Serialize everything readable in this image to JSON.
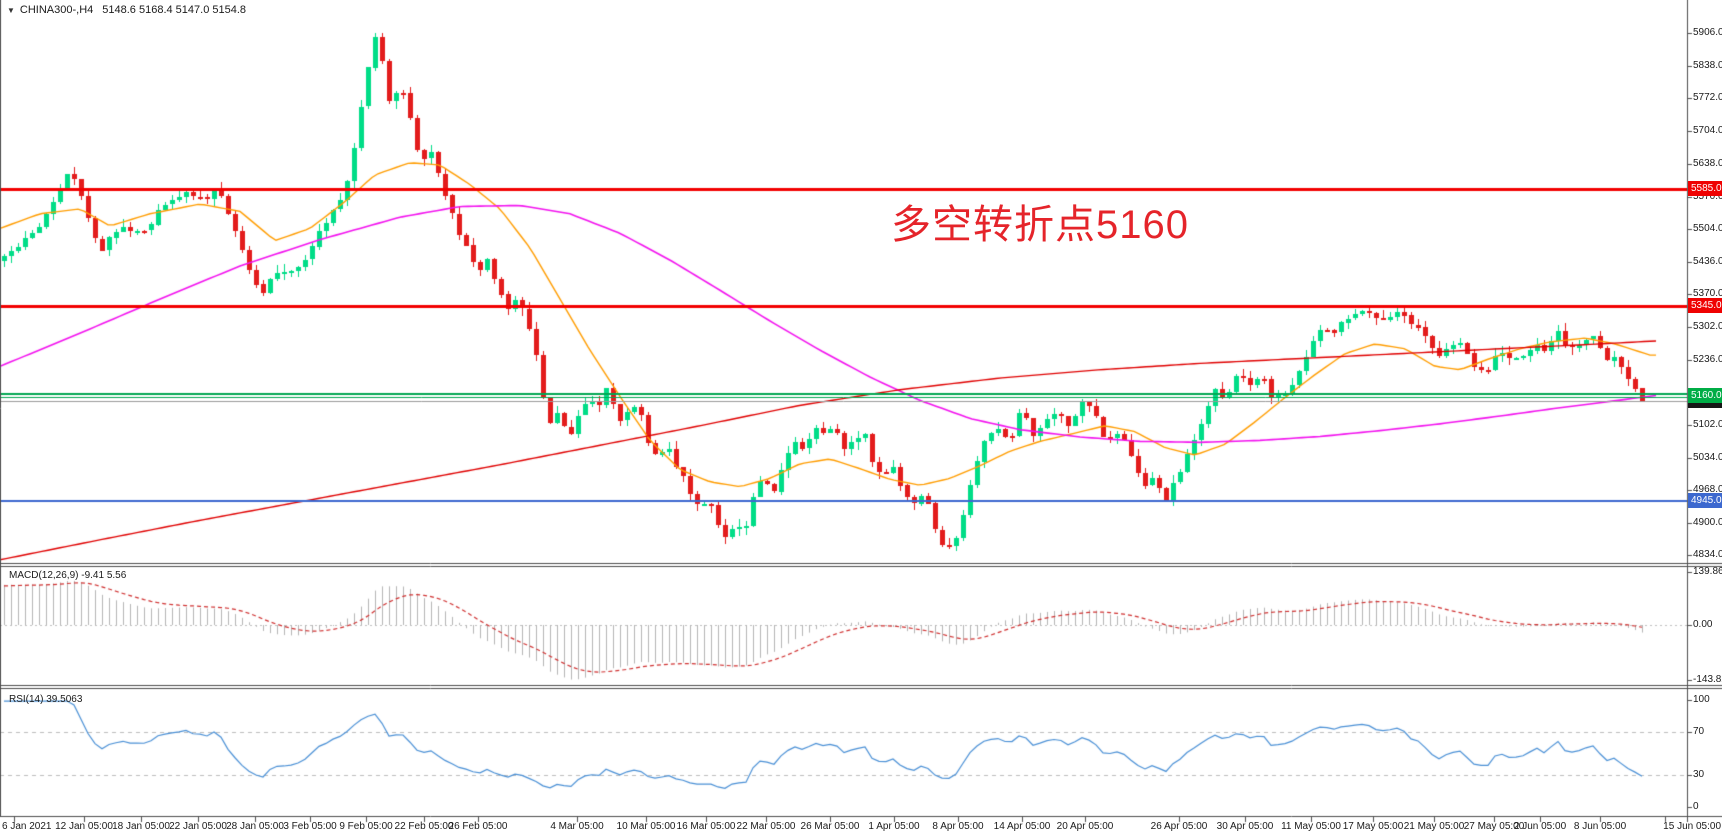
{
  "window": {
    "collapse_icon": "triangle-down-icon",
    "symbol_period": "CHINA300-,H4",
    "ohlc_text": "5148.6 5168.4 5147.0 5154.8"
  },
  "annotation": {
    "text": "多空转折点5160",
    "color": "#e5242a"
  },
  "indicators": {
    "macd": {
      "label": "MACD(12,26,9) -9.41 5.56"
    },
    "rsi": {
      "label": "RSI(14) 39.5063"
    }
  },
  "chart_data": {
    "type": "candlestick",
    "symbol": "CHINA300-",
    "timeframe": "H4",
    "title": "CHINA300-,H4",
    "ohlc_current": {
      "open": 5148.6,
      "high": 5168.4,
      "low": 5147.0,
      "close": 5154.8
    },
    "price_axis_ticks": [
      5906,
      5838,
      5772,
      5704,
      5638,
      5570,
      5504,
      5436,
      5370,
      5302,
      5236,
      5102,
      5034,
      4968,
      4900,
      4834
    ],
    "price_flags": [
      {
        "text": "5585.0",
        "price": 5585,
        "bg": "#ef0202"
      },
      {
        "text": "5345.0",
        "price": 5345,
        "bg": "#ef0202"
      },
      {
        "text": "5154.8",
        "price": 5151.5,
        "bg": "#161616"
      },
      {
        "text": "5160.0",
        "price": 5160.5,
        "bg": "#00ad46"
      },
      {
        "text": "4945.0",
        "price": 4945,
        "bg": "#3c68cf"
      }
    ],
    "horizontal_lines": [
      {
        "name": "resistance-5585",
        "price": 5585,
        "color": "#f20000",
        "width": 3
      },
      {
        "name": "resistance-5345",
        "price": 5345,
        "color": "#f20000",
        "width": 3
      },
      {
        "name": "pivot-green-upper",
        "price": 5166,
        "color": "#00a651",
        "width": 2
      },
      {
        "name": "pivot-green-5160",
        "price": 5160,
        "color": "#00a651",
        "width": 1
      },
      {
        "name": "bid-line",
        "price": 5151.5,
        "color": "#9a9a9a",
        "width": 1
      },
      {
        "name": "support-4945",
        "price": 4945,
        "color": "#3c68cf",
        "width": 2
      }
    ],
    "candle_colors": {
      "bull": "#00dd87",
      "bear": "#e31c1c"
    },
    "close_path": [
      [
        0,
        5440
      ],
      [
        20,
        5470
      ],
      [
        40,
        5515
      ],
      [
        55,
        5570
      ],
      [
        62,
        5600
      ],
      [
        70,
        5630
      ],
      [
        78,
        5585
      ],
      [
        85,
        5545
      ],
      [
        100,
        5455
      ],
      [
        115,
        5500
      ],
      [
        130,
        5505
      ],
      [
        145,
        5495
      ],
      [
        160,
        5550
      ],
      [
        175,
        5560
      ],
      [
        190,
        5580
      ],
      [
        205,
        5555
      ],
      [
        218,
        5595
      ],
      [
        232,
        5510
      ],
      [
        248,
        5430
      ],
      [
        262,
        5370
      ],
      [
        275,
        5420
      ],
      [
        290,
        5415
      ],
      [
        305,
        5445
      ],
      [
        320,
        5500
      ],
      [
        335,
        5545
      ],
      [
        348,
        5600
      ],
      [
        360,
        5740
      ],
      [
        368,
        5830
      ],
      [
        374,
        5900
      ],
      [
        382,
        5845
      ],
      [
        390,
        5755
      ],
      [
        398,
        5800
      ],
      [
        406,
        5770
      ],
      [
        414,
        5690
      ],
      [
        422,
        5640
      ],
      [
        430,
        5668
      ],
      [
        438,
        5612
      ],
      [
        448,
        5555
      ],
      [
        458,
        5500
      ],
      [
        468,
        5465
      ],
      [
        478,
        5415
      ],
      [
        488,
        5440
      ],
      [
        498,
        5385
      ],
      [
        508,
        5340
      ],
      [
        518,
        5365
      ],
      [
        528,
        5305
      ],
      [
        538,
        5225
      ],
      [
        548,
        5100
      ],
      [
        558,
        5135
      ],
      [
        568,
        5075
      ],
      [
        578,
        5115
      ],
      [
        588,
        5160
      ],
      [
        598,
        5145
      ],
      [
        608,
        5180
      ],
      [
        618,
        5110
      ],
      [
        628,
        5125
      ],
      [
        638,
        5150
      ],
      [
        648,
        5060
      ],
      [
        658,
        5030
      ],
      [
        668,
        5060
      ],
      [
        678,
        5010
      ],
      [
        688,
        4975
      ],
      [
        698,
        4930
      ],
      [
        708,
        4955
      ],
      [
        718,
        4895
      ],
      [
        726,
        4875
      ],
      [
        736,
        4905
      ],
      [
        744,
        4880
      ],
      [
        754,
        4965
      ],
      [
        764,
        4995
      ],
      [
        774,
        4960
      ],
      [
        784,
        5035
      ],
      [
        794,
        5070
      ],
      [
        804,
        5050
      ],
      [
        814,
        5100
      ],
      [
        824,
        5085
      ],
      [
        834,
        5105
      ],
      [
        844,
        5055
      ],
      [
        854,
        5075
      ],
      [
        864,
        5085
      ],
      [
        874,
        5015
      ],
      [
        884,
        4995
      ],
      [
        894,
        5020
      ],
      [
        904,
        4960
      ],
      [
        914,
        4935
      ],
      [
        924,
        4965
      ],
      [
        934,
        4890
      ],
      [
        944,
        4855
      ],
      [
        952,
        4845
      ],
      [
        962,
        4905
      ],
      [
        974,
        5010
      ],
      [
        986,
        5075
      ],
      [
        998,
        5090
      ],
      [
        1010,
        5070
      ],
      [
        1022,
        5140
      ],
      [
        1034,
        5070
      ],
      [
        1046,
        5115
      ],
      [
        1058,
        5130
      ],
      [
        1070,
        5095
      ],
      [
        1082,
        5150
      ],
      [
        1094,
        5125
      ],
      [
        1106,
        5065
      ],
      [
        1118,
        5090
      ],
      [
        1130,
        5050
      ],
      [
        1142,
        4980
      ],
      [
        1154,
        4995
      ],
      [
        1166,
        4955
      ],
      [
        1178,
        5000
      ],
      [
        1190,
        5050
      ],
      [
        1202,
        5110
      ],
      [
        1214,
        5175
      ],
      [
        1226,
        5160
      ],
      [
        1238,
        5210
      ],
      [
        1250,
        5190
      ],
      [
        1262,
        5205
      ],
      [
        1274,
        5150
      ],
      [
        1286,
        5170
      ],
      [
        1298,
        5205
      ],
      [
        1310,
        5260
      ],
      [
        1322,
        5305
      ],
      [
        1334,
        5295
      ],
      [
        1346,
        5320
      ],
      [
        1358,
        5330
      ],
      [
        1366,
        5340
      ],
      [
        1378,
        5315
      ],
      [
        1390,
        5320
      ],
      [
        1402,
        5335
      ],
      [
        1414,
        5305
      ],
      [
        1426,
        5280
      ],
      [
        1438,
        5235
      ],
      [
        1450,
        5270
      ],
      [
        1462,
        5265
      ],
      [
        1474,
        5225
      ],
      [
        1486,
        5205
      ],
      [
        1498,
        5255
      ],
      [
        1510,
        5235
      ],
      [
        1522,
        5245
      ],
      [
        1534,
        5265
      ],
      [
        1546,
        5255
      ],
      [
        1558,
        5295
      ],
      [
        1570,
        5255
      ],
      [
        1582,
        5275
      ],
      [
        1594,
        5285
      ],
      [
        1606,
        5240
      ],
      [
        1618,
        5235
      ],
      [
        1630,
        5195
      ],
      [
        1642,
        5155
      ]
    ],
    "moving_averages": [
      {
        "name": "ma-fast-orange",
        "color": "#ff9d00",
        "width": 1.4,
        "points": [
          [
            0,
            5505
          ],
          [
            40,
            5535
          ],
          [
            80,
            5545
          ],
          [
            110,
            5510
          ],
          [
            150,
            5535
          ],
          [
            200,
            5555
          ],
          [
            240,
            5540
          ],
          [
            275,
            5480
          ],
          [
            310,
            5505
          ],
          [
            345,
            5560
          ],
          [
            375,
            5615
          ],
          [
            410,
            5640
          ],
          [
            440,
            5635
          ],
          [
            470,
            5595
          ],
          [
            500,
            5545
          ],
          [
            530,
            5465
          ],
          [
            560,
            5360
          ],
          [
            590,
            5255
          ],
          [
            620,
            5160
          ],
          [
            650,
            5070
          ],
          [
            680,
            5010
          ],
          [
            710,
            4985
          ],
          [
            740,
            4975
          ],
          [
            770,
            4992
          ],
          [
            800,
            5022
          ],
          [
            830,
            5032
          ],
          [
            860,
            5012
          ],
          [
            890,
            4990
          ],
          [
            920,
            4978
          ],
          [
            950,
            4992
          ],
          [
            980,
            5018
          ],
          [
            1010,
            5048
          ],
          [
            1040,
            5068
          ],
          [
            1075,
            5085
          ],
          [
            1105,
            5100
          ],
          [
            1135,
            5088
          ],
          [
            1165,
            5055
          ],
          [
            1195,
            5040
          ],
          [
            1225,
            5062
          ],
          [
            1255,
            5108
          ],
          [
            1285,
            5158
          ],
          [
            1315,
            5205
          ],
          [
            1345,
            5248
          ],
          [
            1375,
            5268
          ],
          [
            1405,
            5258
          ],
          [
            1435,
            5222
          ],
          [
            1460,
            5215
          ],
          [
            1490,
            5238
          ],
          [
            1520,
            5258
          ],
          [
            1550,
            5272
          ],
          [
            1585,
            5280
          ],
          [
            1615,
            5268
          ],
          [
            1650,
            5245
          ]
        ]
      },
      {
        "name": "ma-mid-magenta",
        "color": "#f313ef",
        "width": 1.6,
        "points": [
          [
            0,
            5222
          ],
          [
            80,
            5290
          ],
          [
            160,
            5360
          ],
          [
            240,
            5428
          ],
          [
            320,
            5482
          ],
          [
            400,
            5528
          ],
          [
            460,
            5550
          ],
          [
            520,
            5552
          ],
          [
            570,
            5535
          ],
          [
            620,
            5495
          ],
          [
            670,
            5440
          ],
          [
            720,
            5378
          ],
          [
            770,
            5315
          ],
          [
            820,
            5255
          ],
          [
            870,
            5200
          ],
          [
            920,
            5152
          ],
          [
            970,
            5115
          ],
          [
            1020,
            5092
          ],
          [
            1080,
            5077
          ],
          [
            1140,
            5068
          ],
          [
            1200,
            5066
          ],
          [
            1260,
            5070
          ],
          [
            1320,
            5078
          ],
          [
            1380,
            5090
          ],
          [
            1440,
            5104
          ],
          [
            1500,
            5120
          ],
          [
            1560,
            5137
          ],
          [
            1610,
            5150
          ],
          [
            1655,
            5162
          ]
        ]
      },
      {
        "name": "ma-slow-red",
        "color": "#e00000",
        "width": 1.4,
        "points": [
          [
            0,
            4825
          ],
          [
            100,
            4866
          ],
          [
            200,
            4906
          ],
          [
            300,
            4944
          ],
          [
            400,
            4982
          ],
          [
            500,
            5020
          ],
          [
            600,
            5060
          ],
          [
            700,
            5100
          ],
          [
            800,
            5142
          ],
          [
            900,
            5174
          ],
          [
            1000,
            5198
          ],
          [
            1100,
            5215
          ],
          [
            1200,
            5228
          ],
          [
            1300,
            5238
          ],
          [
            1400,
            5248
          ],
          [
            1500,
            5258
          ],
          [
            1600,
            5268
          ],
          [
            1655,
            5274
          ]
        ]
      }
    ],
    "macd": {
      "params": [
        12,
        26,
        9
      ],
      "values_display": "-9.41 5.56",
      "axis": [
        {
          "text": "139.86",
          "value": 139.86
        },
        {
          "text": "0.00",
          "value": 0
        },
        {
          "text": "-143.82",
          "value": -143.82
        }
      ],
      "hist_color": "#b5b5b5",
      "signal_color": "#d03030"
    },
    "rsi": {
      "period": 14,
      "value": 39.5063,
      "axis": [
        {
          "text": "100",
          "value": 100
        },
        {
          "text": "70",
          "value": 70
        },
        {
          "text": "30",
          "value": 30
        },
        {
          "text": "0",
          "value": 0
        }
      ],
      "levels": [
        70,
        30
      ],
      "color": "#4a90d6",
      "level_color": "#bdbdbd"
    },
    "time_labels": [
      "6 Jan 2021",
      "12 Jan 05:00",
      "18 Jan 05:00",
      "22 Jan 05:00",
      "28 Jan 05:00",
      "3 Feb 05:00",
      "9 Feb 05:00",
      "22 Feb 05:00",
      "26 Feb 05:00",
      "4 Mar 05:00",
      "10 Mar 05:00",
      "16 Mar 05:00",
      "22 Mar 05:00",
      "26 Mar 05:00",
      "1 Apr 05:00",
      "8 Apr 05:00",
      "14 Apr 05:00",
      "20 Apr 05:00",
      "26 Apr 05:00",
      "30 Apr 05:00",
      "11 May 05:00",
      "17 May 05:00",
      "21 May 05:00",
      "27 May 05:00",
      "2 Jun 05:00",
      "8 Jun 05:00",
      "15 Jun 05:00"
    ]
  }
}
